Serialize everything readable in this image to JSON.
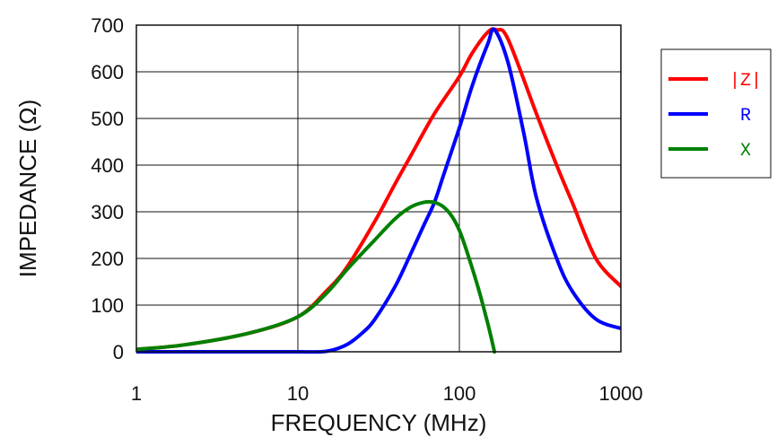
{
  "chart_data": {
    "type": "line",
    "title": "",
    "xlabel": "FREQUENCY (MHz)",
    "ylabel": "IMPEDANCE (Ω)",
    "x_scale": "log",
    "xlim": [
      1,
      1000
    ],
    "ylim": [
      0,
      700
    ],
    "x_ticks": [
      1,
      10,
      100,
      1000
    ],
    "x_tick_labels": [
      "1",
      "10",
      "100",
      "1000"
    ],
    "y_ticks": [
      0,
      100,
      200,
      300,
      400,
      500,
      600,
      700
    ],
    "y_tick_labels": [
      "0",
      "100",
      "200",
      "300",
      "400",
      "500",
      "600",
      "700"
    ],
    "grid": true,
    "legend_position": "right",
    "series": [
      {
        "name": "|Z|",
        "color": "#ff0000",
        "x": [
          1,
          2,
          5,
          10,
          15,
          20,
          30,
          40,
          50,
          70,
          100,
          120,
          150,
          170,
          200,
          300,
          400,
          500,
          700,
          1000
        ],
        "y": [
          5,
          15,
          40,
          75,
          130,
          180,
          280,
          360,
          420,
          510,
          590,
          640,
          685,
          690,
          670,
          510,
          400,
          320,
          200,
          140
        ]
      },
      {
        "name": "R",
        "color": "#0000ff",
        "x": [
          1,
          5,
          10,
          15,
          20,
          25,
          30,
          40,
          50,
          60,
          70,
          80,
          100,
          120,
          150,
          165,
          200,
          250,
          300,
          400,
          500,
          700,
          1000
        ],
        "y": [
          0,
          0,
          0,
          1,
          15,
          40,
          70,
          140,
          210,
          270,
          320,
          380,
          480,
          570,
          660,
          690,
          620,
          470,
          330,
          200,
          130,
          70,
          50
        ]
      },
      {
        "name": "X",
        "color": "#008000",
        "x": [
          1,
          2,
          5,
          10,
          15,
          20,
          30,
          40,
          50,
          60,
          70,
          80,
          90,
          100,
          110,
          130,
          150,
          165
        ],
        "y": [
          5,
          15,
          40,
          75,
          125,
          175,
          240,
          285,
          310,
          320,
          320,
          310,
          290,
          260,
          220,
          140,
          60,
          0
        ]
      }
    ]
  }
}
